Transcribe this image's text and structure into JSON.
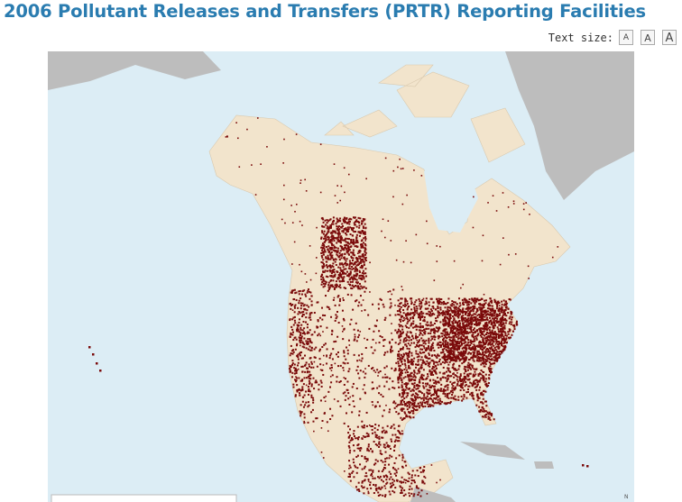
{
  "header": {
    "title": "2006 Pollutant Releases and Transfers (PRTR) Reporting Facilities"
  },
  "controls": {
    "label": "Text size:",
    "buttons": [
      "A",
      "A",
      "A"
    ]
  },
  "map": {
    "north_label": "N"
  }
}
